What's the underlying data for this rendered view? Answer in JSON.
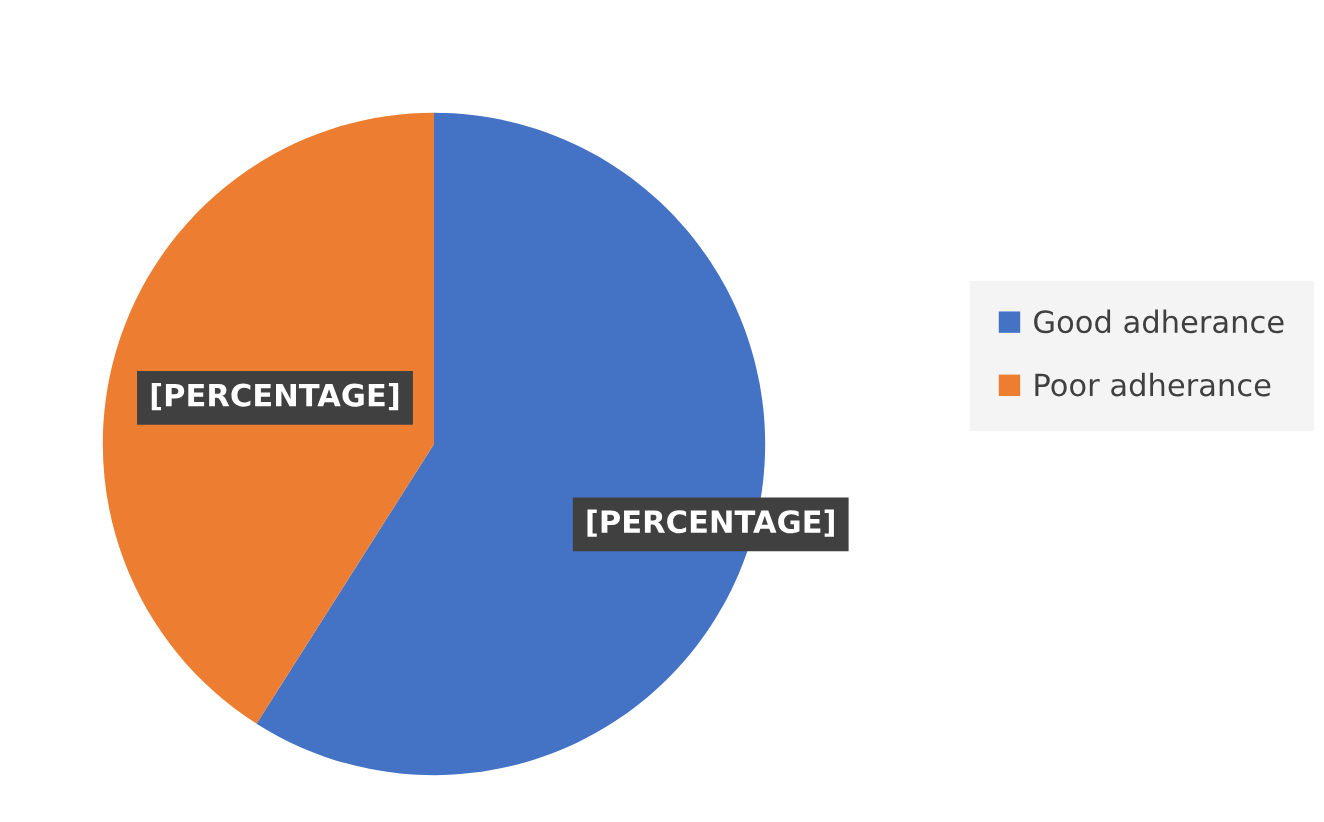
{
  "chart_data": {
    "type": "pie",
    "categories": [
      "Good adherance",
      "Poor adherance"
    ],
    "values": [
      59,
      41
    ],
    "colors": [
      "#4472c4",
      "#ed7d31"
    ],
    "value_labels": [
      "[PERCENTAGE]",
      "[PERCENTAGE]"
    ],
    "legend": "right"
  }
}
